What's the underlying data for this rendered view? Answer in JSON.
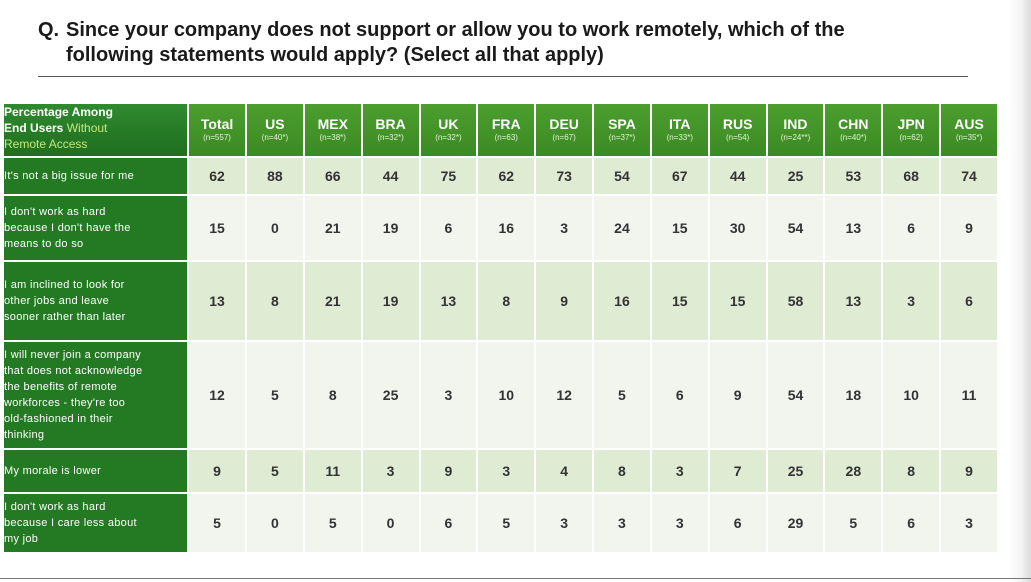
{
  "question": {
    "prefix": "Q.",
    "line1": "Since your company does not support or allow you to work remotely, which of the",
    "line2": "following statements would apply? (Select all that apply)"
  },
  "table": {
    "corner": {
      "line1": "Percentage Among",
      "line2_bold": "End Users",
      "line2_accent": "Without",
      "line3_accent": "Remote Access"
    },
    "columns": [
      {
        "code": "Total",
        "n": "(n=557)"
      },
      {
        "code": "US",
        "n": "(n=40*)"
      },
      {
        "code": "MEX",
        "n": "(n=38*)"
      },
      {
        "code": "BRA",
        "n": "(n=32*)"
      },
      {
        "code": "UK",
        "n": "(n=32*)"
      },
      {
        "code": "FRA",
        "n": "(n=63)"
      },
      {
        "code": "DEU",
        "n": "(n=67)"
      },
      {
        "code": "SPA",
        "n": "(n=37*)"
      },
      {
        "code": "ITA",
        "n": "(n=33*)"
      },
      {
        "code": "RUS",
        "n": "(n=54)"
      },
      {
        "code": "IND",
        "n": "(n=24**)"
      },
      {
        "code": "CHN",
        "n": "(n=40*)"
      },
      {
        "code": "JPN",
        "n": "(n=62)"
      },
      {
        "code": "AUS",
        "n": "(n=35*)"
      }
    ],
    "rows": [
      {
        "label": [
          "It's not a big issue for me"
        ],
        "values": [
          "62",
          "88",
          "66",
          "44",
          "75",
          "62",
          "73",
          "54",
          "67",
          "44",
          "25",
          "53",
          "68",
          "74"
        ]
      },
      {
        "label": [
          "I don't work as hard",
          "because I don't have the",
          "means to do so"
        ],
        "values": [
          "15",
          "0",
          "21",
          "19",
          "6",
          "16",
          "3",
          "24",
          "15",
          "30",
          "54",
          "13",
          "6",
          "9"
        ]
      },
      {
        "label": [
          "I am inclined to look for",
          "other jobs and leave",
          "sooner rather than later"
        ],
        "values": [
          "13",
          "8",
          "21",
          "19",
          "13",
          "8",
          "9",
          "16",
          "15",
          "15",
          "58",
          "13",
          "3",
          "6"
        ]
      },
      {
        "label": [
          "I will never join a company",
          "that does not acknowledge",
          "the benefits of remote",
          "workforces - they're too",
          "old-fashioned in their",
          "thinking"
        ],
        "values": [
          "12",
          "5",
          "8",
          "25",
          "3",
          "10",
          "12",
          "5",
          "6",
          "9",
          "54",
          "18",
          "10",
          "11"
        ]
      },
      {
        "label": [
          "My morale is lower"
        ],
        "values": [
          "9",
          "5",
          "11",
          "3",
          "9",
          "3",
          "4",
          "8",
          "3",
          "7",
          "25",
          "28",
          "8",
          "9"
        ]
      },
      {
        "label": [
          "I don't work as hard",
          "because I care less about",
          "my job"
        ],
        "values": [
          "5",
          "0",
          "5",
          "0",
          "6",
          "5",
          "3",
          "3",
          "3",
          "6",
          "29",
          "5",
          "6",
          "3"
        ]
      }
    ]
  },
  "colors": {
    "header_green": "#3b8a24",
    "row_label_green": "#237a23",
    "accent_text": "#c6e87a",
    "band_dark": "#dfecd3",
    "band_light": "#f1f5ee"
  }
}
